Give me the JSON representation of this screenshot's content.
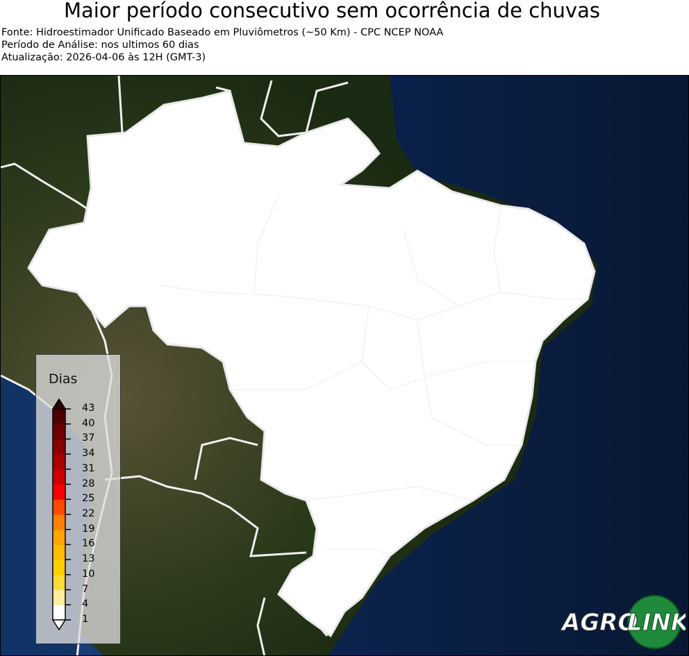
{
  "header": {
    "title": "Maior período consecutivo sem ocorrência de chuvas",
    "source": "Fonte: Hidroestimador Unificado Baseado em Pluviômetros (~50 Km) - CPC NCEP NOAA",
    "period": "Período de Análise: nos ultimos 60 dias",
    "updated": "Atualização: 2026-04-06 às 12H (GMT-3)"
  },
  "legend": {
    "title": "Dias",
    "ticks": [
      "1",
      "4",
      "7",
      "10",
      "13",
      "16",
      "19",
      "22",
      "25",
      "28",
      "31",
      "34",
      "37",
      "40",
      "43"
    ],
    "colors": [
      "#ffffff",
      "#ffeda0",
      "#ffdb3a",
      "#ffd000",
      "#ffbc00",
      "#ffa400",
      "#ff7f00",
      "#ff4800",
      "#ff0000",
      "#cc0000",
      "#aa0000",
      "#8a0000",
      "#6e0000",
      "#4e0000"
    ],
    "over_color": "#300000",
    "under_color": "#ffffff"
  },
  "map": {
    "region": "Brazil",
    "fill_value_days": 1,
    "land_color": "#ffffff"
  },
  "logo": {
    "text_agro": "AGRO",
    "text_link": "LINK"
  }
}
